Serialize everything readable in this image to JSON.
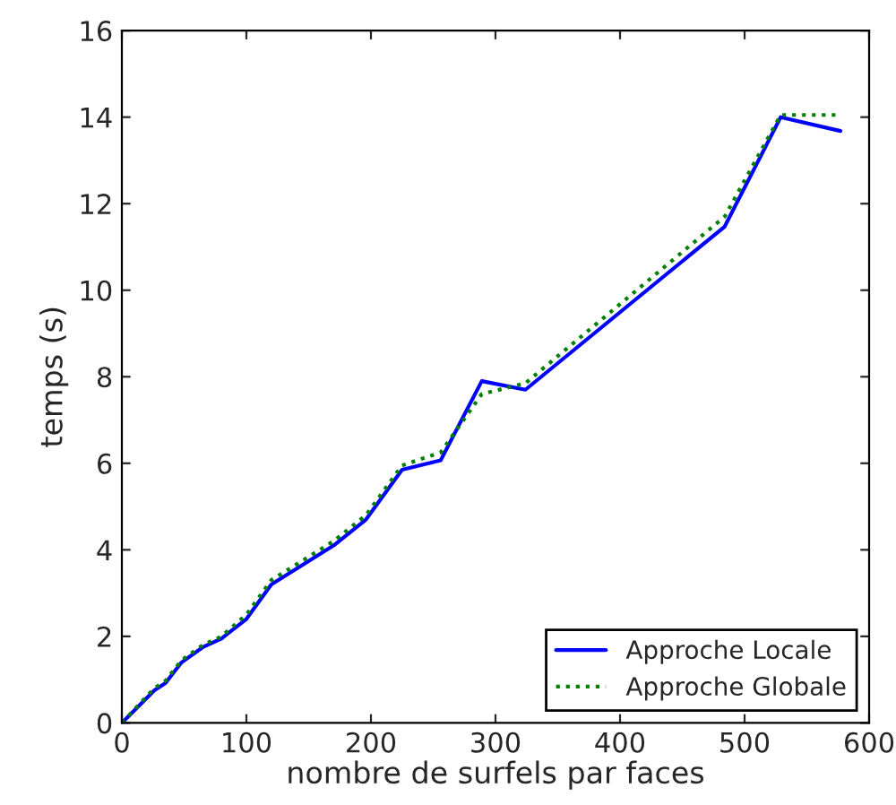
{
  "chart_data": {
    "type": "line",
    "xlabel": "nombre de surfels par faces",
    "ylabel": "temps (s)",
    "xlim": [
      0,
      600
    ],
    "ylim": [
      0,
      16
    ],
    "xticks": [
      0,
      100,
      200,
      300,
      400,
      500,
      600
    ],
    "yticks": [
      0,
      2,
      4,
      6,
      8,
      10,
      12,
      14,
      16
    ],
    "grid": false,
    "legend": "bottom right",
    "series": [
      {
        "name": "Approche Locale",
        "color": "#0000ff",
        "line_style": "solid",
        "x": [
          0,
          26,
          35,
          48,
          65,
          80,
          100,
          120,
          170,
          196,
          225,
          256,
          289,
          324,
          484,
          529,
          577
        ],
        "values": [
          0,
          0.75,
          0.92,
          1.4,
          1.75,
          1.95,
          2.4,
          3.2,
          4.1,
          4.7,
          5.85,
          6.07,
          7.9,
          7.7,
          11.47,
          14.0,
          13.68
        ]
      },
      {
        "name": "Approche Globale",
        "color": "#008000",
        "line_style": "dotted",
        "x": [
          0,
          26,
          35,
          48,
          65,
          80,
          100,
          120,
          170,
          196,
          225,
          256,
          289,
          324,
          484,
          529,
          577
        ],
        "values": [
          0,
          0.8,
          0.97,
          1.45,
          1.8,
          2.0,
          2.5,
          3.3,
          4.2,
          4.8,
          5.95,
          6.25,
          7.6,
          7.85,
          11.7,
          14.05,
          14.05
        ]
      }
    ]
  }
}
